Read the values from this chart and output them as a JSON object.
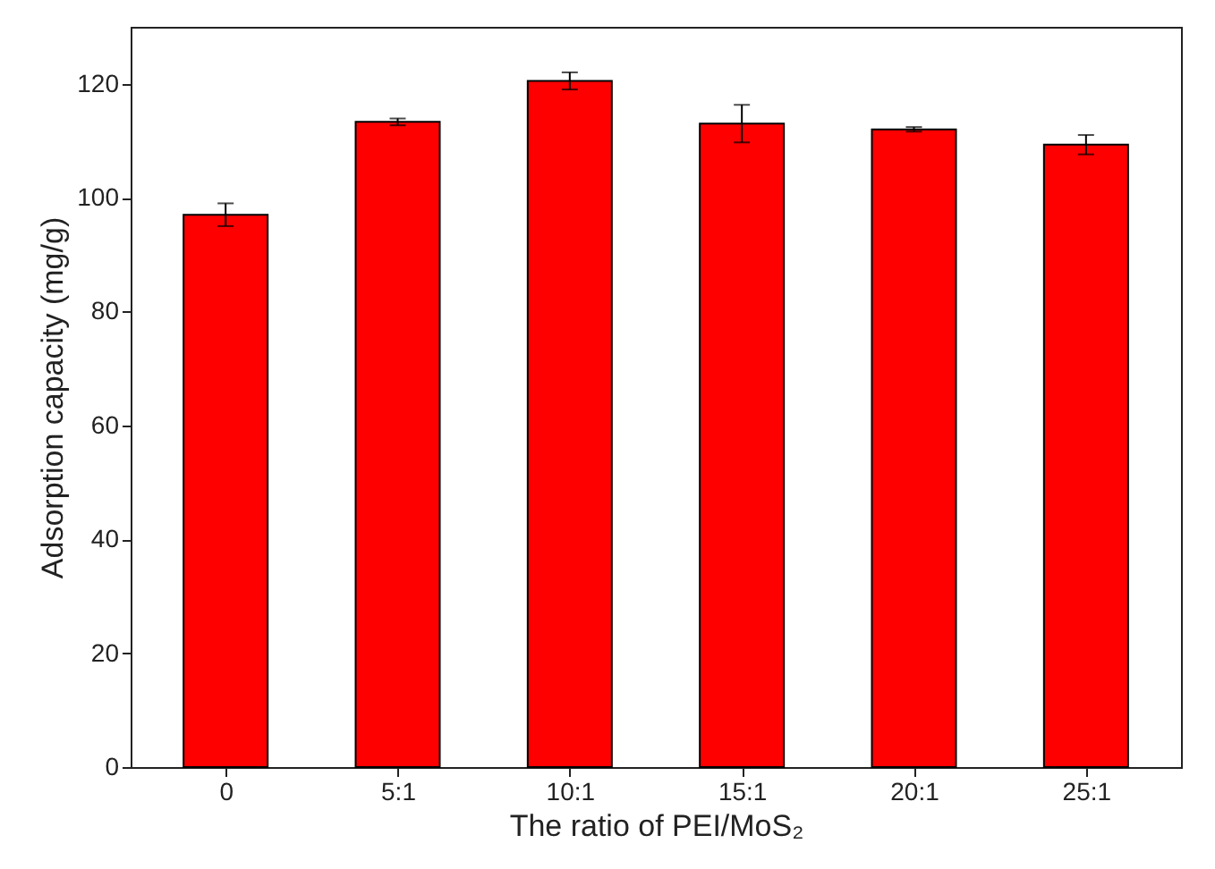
{
  "chart_data": {
    "type": "bar",
    "xlabel": "The ratio of PEI/MoS₂",
    "ylabel": "Adsorption capacity (mg/g)",
    "categories": [
      "0",
      "5:1",
      "10:1",
      "15:1",
      "20:1",
      "25:1"
    ],
    "values": [
      97,
      113.3,
      120.5,
      113,
      112,
      109.3
    ],
    "errors": [
      2,
      0.6,
      1.5,
      3.3,
      0.4,
      1.7
    ],
    "color": "#ff0000",
    "ylim": [
      0,
      130
    ],
    "yticks": [
      0,
      20,
      40,
      60,
      80,
      100,
      120
    ],
    "grid": false
  }
}
